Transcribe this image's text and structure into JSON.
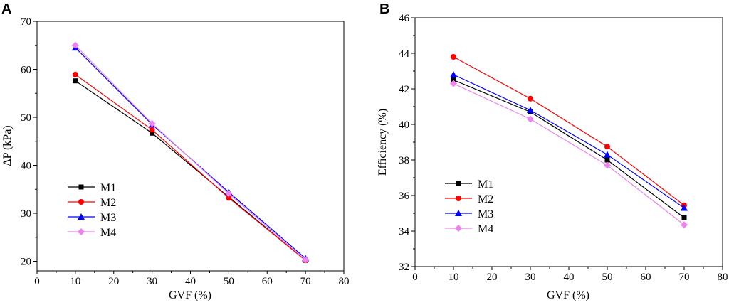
{
  "chart_data": [
    {
      "type": "line",
      "panel": "A",
      "title": "",
      "xlabel": "GVF (%)",
      "ylabel": "ΔP (kPa)",
      "xlim": [
        0,
        80
      ],
      "ylim": [
        18,
        70
      ],
      "xticks": [
        0,
        10,
        20,
        30,
        40,
        50,
        60,
        70,
        80
      ],
      "yticks": [
        20,
        30,
        40,
        50,
        60,
        70
      ],
      "grid": false,
      "legend_position": "lower-left",
      "x": [
        10,
        30,
        50,
        70
      ],
      "series": [
        {
          "name": "M1",
          "color": "#000000",
          "marker": "square",
          "values": [
            57.6,
            46.7,
            33.4,
            20.2
          ]
        },
        {
          "name": "M2",
          "color": "#ff0000",
          "marker": "circle",
          "values": [
            58.9,
            47.4,
            33.2,
            20.2
          ]
        },
        {
          "name": "M3",
          "color": "#0000ff",
          "marker": "triangle",
          "values": [
            64.5,
            48.5,
            34.4,
            20.6
          ]
        },
        {
          "name": "M4",
          "color": "#ee82ee",
          "marker": "diamond",
          "values": [
            65.0,
            48.7,
            34.1,
            20.3
          ]
        }
      ]
    },
    {
      "type": "line",
      "panel": "B",
      "title": "",
      "xlabel": "GVF (%)",
      "ylabel": "Efficiency (%)",
      "xlim": [
        0,
        80
      ],
      "ylim": [
        32,
        46
      ],
      "xticks": [
        0,
        10,
        20,
        30,
        40,
        50,
        60,
        70,
        80
      ],
      "yticks": [
        32,
        34,
        36,
        38,
        40,
        42,
        44,
        46
      ],
      "grid": false,
      "legend_position": "lower-left",
      "x": [
        10,
        30,
        50,
        70
      ],
      "series": [
        {
          "name": "M1",
          "color": "#000000",
          "marker": "square",
          "values": [
            42.5,
            40.7,
            38.0,
            34.75
          ]
        },
        {
          "name": "M2",
          "color": "#ff0000",
          "marker": "circle",
          "values": [
            43.8,
            41.45,
            38.75,
            35.45
          ]
        },
        {
          "name": "M3",
          "color": "#0000ff",
          "marker": "triangle",
          "values": [
            42.8,
            40.8,
            38.3,
            35.3
          ]
        },
        {
          "name": "M4",
          "color": "#ee82ee",
          "marker": "diamond",
          "values": [
            42.3,
            40.3,
            37.7,
            34.35
          ]
        }
      ]
    }
  ]
}
